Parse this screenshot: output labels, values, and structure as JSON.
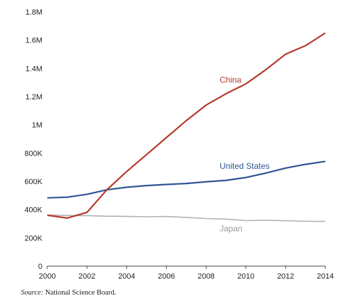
{
  "chart_data": {
    "type": "line",
    "x": [
      2000,
      2001,
      2002,
      2003,
      2004,
      2005,
      2006,
      2007,
      2008,
      2009,
      2010,
      2011,
      2012,
      2013,
      2014
    ],
    "series": [
      {
        "name": "China",
        "color": "#b5392a",
        "values": [
          360000,
          340000,
          380000,
          540000,
          670000,
          790000,
          910000,
          1030000,
          1140000,
          1220000,
          1290000,
          1390000,
          1500000,
          1560000,
          1650000
        ]
      },
      {
        "name": "United States",
        "color": "#2f5593",
        "values": [
          483000,
          488000,
          508000,
          540000,
          558000,
          570000,
          578000,
          585000,
          597000,
          607000,
          627000,
          658000,
          694000,
          720000,
          741000
        ]
      },
      {
        "name": "Japan",
        "color": "#b0b0b0",
        "values": [
          362000,
          358000,
          357000,
          353000,
          352000,
          349000,
          351000,
          345000,
          337000,
          333000,
          322000,
          324000,
          321000,
          317000,
          316000
        ]
      }
    ],
    "x_ticks": [
      "2000",
      "2002",
      "2004",
      "2006",
      "2008",
      "2010",
      "2012",
      "2014"
    ],
    "y_ticks": [
      "0",
      "200K",
      "400K",
      "600K",
      "800K",
      "1M",
      "1.2M",
      "1.4M",
      "1.6M",
      "1.8M"
    ],
    "xlim": [
      2000,
      2014
    ],
    "ylim": [
      0,
      1800000
    ],
    "grid": false,
    "title": "",
    "xlabel": "",
    "ylabel": ""
  },
  "source": {
    "label": "Source:",
    "text": " National Science Board."
  }
}
